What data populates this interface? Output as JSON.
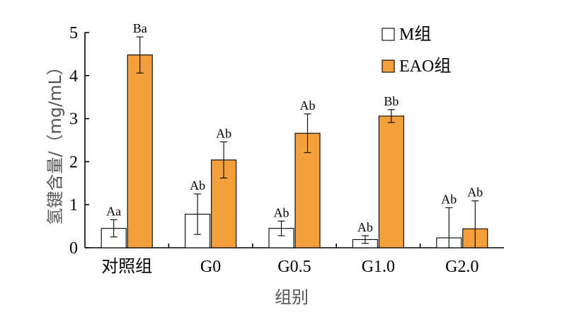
{
  "chart_data": {
    "type": "bar",
    "categories": [
      "对照组",
      "G0",
      "G0.5",
      "G1.0",
      "G2.0"
    ],
    "xlabel": "组别",
    "ylabel": "氢键含量/（mg/mL）",
    "ylim": [
      0,
      5
    ],
    "yticks": [
      "0",
      "1",
      "2",
      "3",
      "4",
      "5"
    ],
    "grid": false,
    "legend_position": "top-right",
    "series": [
      {
        "name": "M组",
        "color": "#ffffff",
        "values": [
          0.45,
          0.78,
          0.45,
          0.19,
          0.23
        ],
        "errors": [
          0.2,
          0.47,
          0.17,
          0.09,
          0.7
        ],
        "labels": [
          "Aa",
          "Ab",
          "Ab",
          "Ab",
          "Ab"
        ]
      },
      {
        "name": "EAO组",
        "color": "#f5a03c",
        "values": [
          4.48,
          2.04,
          2.66,
          3.06,
          0.44
        ],
        "errors": [
          0.42,
          0.42,
          0.45,
          0.15,
          0.65
        ],
        "labels": [
          "Ba",
          "Ab",
          "Ab",
          "Bb",
          "Ab"
        ]
      }
    ]
  }
}
